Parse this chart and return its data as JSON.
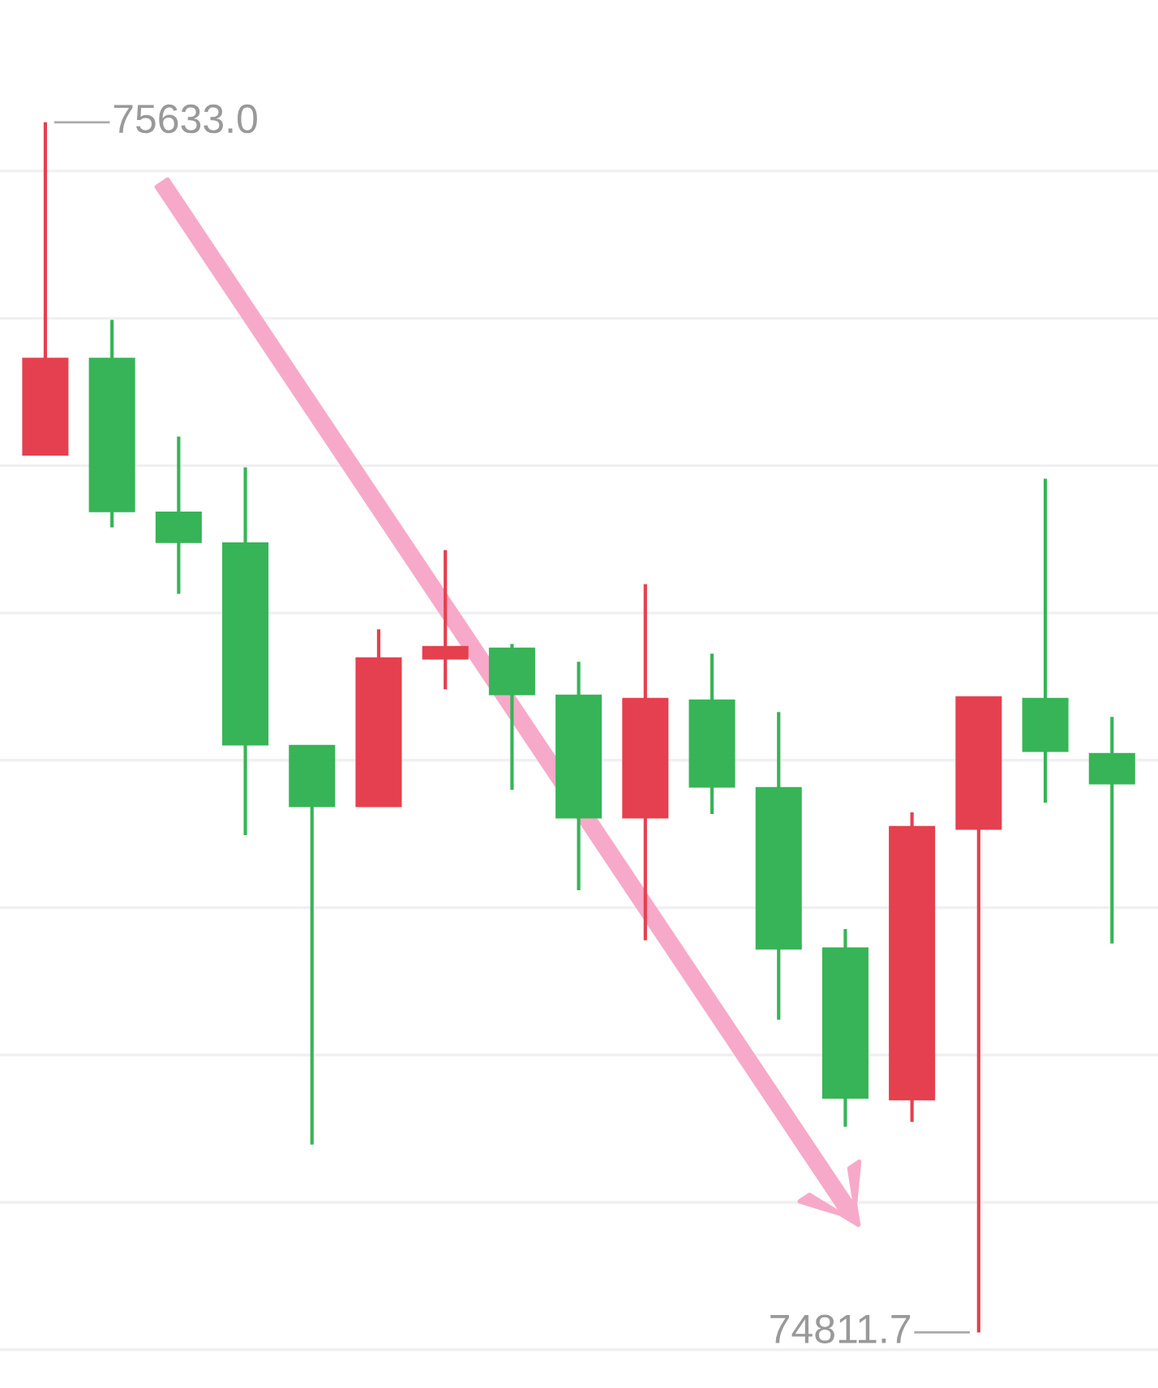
{
  "chart_data": {
    "type": "candlestick",
    "categories": [
      null,
      null,
      null,
      null,
      null,
      null,
      null,
      null,
      null,
      null,
      null,
      null,
      null,
      null,
      null,
      null,
      null
    ],
    "ohlc": [
      [
        75407.6,
        75633.0,
        75407.6,
        75472.5
      ],
      [
        75472.5,
        75498.9,
        75358.1,
        75369.1
      ],
      [
        75368.0,
        75419.7,
        75313.0,
        75348.2
      ],
      [
        75347.1,
        75398.8,
        75149.2,
        75210.8
      ],
      [
        75209.7,
        75209.7,
        74939.2,
        75169.0
      ],
      [
        75169.0,
        75288.9,
        75169.0,
        75269.1
      ],
      [
        75269.1,
        75342.7,
        75248.2,
        75276.8
      ],
      [
        75275.7,
        75279.0,
        75180.0,
        75244.9
      ],
      [
        75243.8,
        75266.9,
        75111.8,
        75161.3
      ],
      [
        75161.3,
        75319.6,
        75077.8,
        75241.6
      ],
      [
        75240.5,
        75272.4,
        75163.5,
        75182.2
      ],
      [
        75181.1,
        75232.8,
        75023.9,
        75072.3
      ],
      [
        75072.3,
        75085.4,
        74951.3,
        74971.1
      ],
      [
        74970.0,
        75164.6,
        74954.6,
        75154.7
      ],
      [
        75153.6,
        75242.7,
        74811.7,
        75242.7
      ],
      [
        75241.6,
        75391.1,
        75171.2,
        75206.4
      ],
      [
        75204.2,
        75229.5,
        75075.6,
        75184.4
      ]
    ],
    "colors": [
      "#e5404f",
      "#37b457",
      "#37b457",
      "#37b457",
      "#37b457",
      "#e5404f",
      "#e5404f",
      "#37b457",
      "#37b457",
      "#e5404f",
      "#37b457",
      "#37b457",
      "#37b457",
      "#e5404f",
      "#e5404f",
      "#37b457",
      "#37b457"
    ],
    "ylim": [
      74774,
      75716
    ],
    "yticks": [
      {
        "value": 74800,
        "label": null
      },
      {
        "value": 74900,
        "label": null
      },
      {
        "value": 75000,
        "label": null
      },
      {
        "value": 75100,
        "label": null
      },
      {
        "value": 75200,
        "label": null
      },
      {
        "value": 75300,
        "label": null
      },
      {
        "value": 75400,
        "label": null
      },
      {
        "value": 75500,
        "label": null
      },
      {
        "value": 75600,
        "label": null
      }
    ],
    "grid": "y",
    "annotations": [
      "75633.0",
      "74811.7"
    ]
  }
}
